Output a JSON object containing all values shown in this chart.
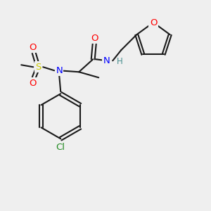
{
  "bg_color": "#efefef",
  "bond_color": "#1a1a1a",
  "bond_lw": 1.5,
  "atom_colors": {
    "O": "#ff0000",
    "N": "#0000ff",
    "S": "#cccc00",
    "Cl": "#228b22",
    "H": "#4a9090",
    "C": "#1a1a1a"
  },
  "font_size": 9.5,
  "font_size_small": 8.5
}
